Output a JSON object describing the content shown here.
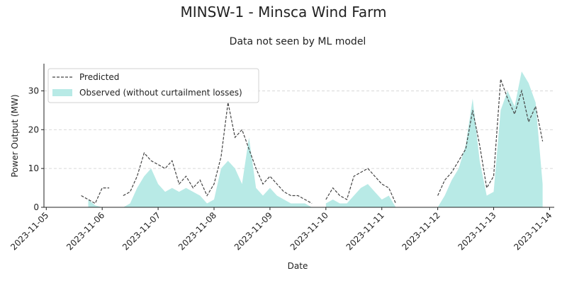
{
  "chart_data": {
    "type": "line-area",
    "title": "MINSW-1 - Minsca Wind Farm",
    "subtitle": "Data not seen by ML model",
    "xlabel": "Date",
    "ylabel": "Power Output (MW)",
    "x": [
      "2023-11-05T15:00",
      "2023-11-05T18:00",
      "2023-11-05T21:00",
      "2023-11-06T00:00",
      "2023-11-06T03:00",
      "2023-11-06T06:00",
      "2023-11-06T09:00",
      "2023-11-06T12:00",
      "2023-11-06T15:00",
      "2023-11-06T18:00",
      "2023-11-06T21:00",
      "2023-11-07T00:00",
      "2023-11-07T03:00",
      "2023-11-07T06:00",
      "2023-11-07T09:00",
      "2023-11-07T12:00",
      "2023-11-07T15:00",
      "2023-11-07T18:00",
      "2023-11-07T21:00",
      "2023-11-08T00:00",
      "2023-11-08T03:00",
      "2023-11-08T06:00",
      "2023-11-08T09:00",
      "2023-11-08T12:00",
      "2023-11-08T15:00",
      "2023-11-08T18:00",
      "2023-11-08T21:00",
      "2023-11-09T00:00",
      "2023-11-09T03:00",
      "2023-11-09T06:00",
      "2023-11-09T09:00",
      "2023-11-09T12:00",
      "2023-11-09T15:00",
      "2023-11-09T18:00",
      "2023-11-09T21:00",
      "2023-11-10T00:00",
      "2023-11-10T03:00",
      "2023-11-10T06:00",
      "2023-11-10T09:00",
      "2023-11-10T12:00",
      "2023-11-10T15:00",
      "2023-11-10T18:00",
      "2023-11-10T21:00",
      "2023-11-11T00:00",
      "2023-11-11T03:00",
      "2023-11-11T06:00",
      "2023-11-11T09:00",
      "2023-11-11T12:00",
      "2023-11-11T15:00",
      "2023-11-11T18:00",
      "2023-11-11T21:00",
      "2023-11-12T00:00",
      "2023-11-12T03:00",
      "2023-11-12T06:00",
      "2023-11-12T09:00",
      "2023-11-12T12:00",
      "2023-11-12T15:00",
      "2023-11-12T18:00",
      "2023-11-12T21:00",
      "2023-11-13T00:00",
      "2023-11-13T03:00",
      "2023-11-13T06:00",
      "2023-11-13T09:00",
      "2023-11-13T12:00",
      "2023-11-13T15:00",
      "2023-11-13T18:00",
      "2023-11-13T21:00"
    ],
    "series": [
      {
        "name": "Predicted",
        "kind": "line",
        "color": "#444444",
        "values": [
          3,
          2,
          1,
          5,
          5,
          null,
          3,
          4,
          8,
          14,
          12,
          11,
          10,
          12,
          6,
          8,
          5,
          7,
          3,
          6,
          13,
          27,
          18,
          20,
          15,
          10,
          6,
          8,
          6,
          4,
          3,
          3,
          2,
          1,
          null,
          2,
          5,
          3,
          2,
          8,
          9,
          10,
          8,
          6,
          5,
          1,
          null,
          null,
          null,
          null,
          null,
          3,
          7,
          9,
          12,
          15,
          25,
          16,
          5,
          8,
          33,
          28,
          24,
          30,
          22,
          26,
          17
        ]
      },
      {
        "name": "Observed (without curtailment losses)",
        "kind": "area",
        "color": "#b8eae6",
        "values": [
          null,
          2,
          0.5,
          0,
          0,
          null,
          0,
          1,
          5,
          8,
          10,
          6,
          4,
          5,
          4,
          5,
          4,
          3,
          1,
          2,
          10,
          12,
          10,
          6,
          18,
          5,
          3,
          5,
          3,
          2,
          1,
          1,
          1,
          0,
          null,
          1,
          2,
          1,
          1,
          3,
          5,
          6,
          4,
          2,
          3,
          0,
          null,
          null,
          null,
          null,
          null,
          0,
          3,
          7,
          10,
          16,
          28,
          12,
          3,
          4,
          25,
          30,
          26,
          35,
          32,
          27,
          6
        ]
      }
    ],
    "xlim": [
      "2023-11-04T23:00",
      "2023-11-14T02:00"
    ],
    "xticks": [
      "2023-11-05",
      "2023-11-06",
      "2023-11-07",
      "2023-11-08",
      "2023-11-09",
      "2023-11-10",
      "2023-11-11",
      "2023-11-12",
      "2023-11-13",
      "2023-11-14"
    ],
    "ylim": [
      0,
      37
    ],
    "yticks": [
      0,
      10,
      20,
      30
    ],
    "grid": true,
    "legend": "upper-left"
  }
}
